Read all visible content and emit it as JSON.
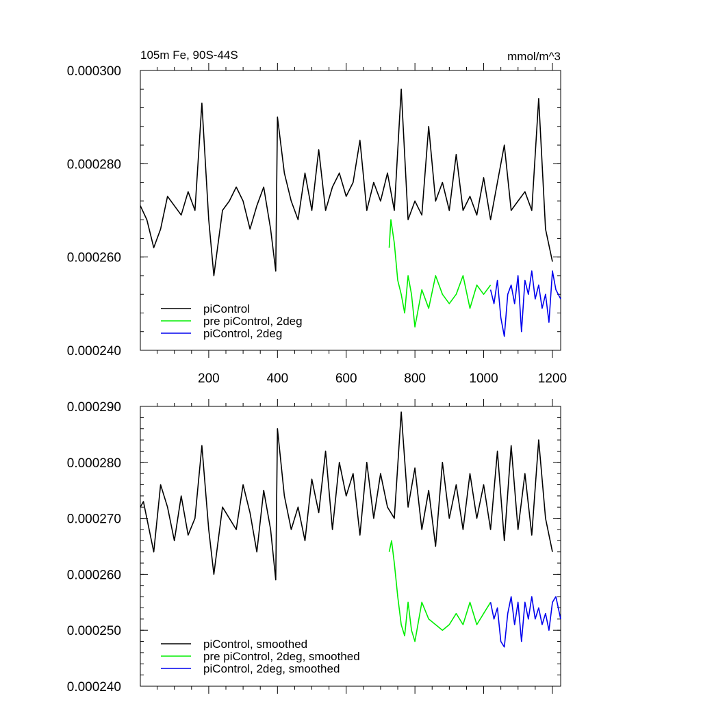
{
  "chart_data": [
    {
      "type": "line",
      "title": "105m Fe, 90S-44S",
      "units": "mmol/m^3",
      "xlabel": "",
      "ylabel": "",
      "xlim": [
        1,
        1224
      ],
      "ylim": [
        0.00024,
        0.0003
      ],
      "xticks": [
        200,
        400,
        600,
        800,
        1000,
        1200
      ],
      "xtick_labels": [
        "200",
        "400",
        "600",
        "800",
        "1000",
        "1200"
      ],
      "yticks": [
        0.00024,
        0.00026,
        0.00028,
        0.0003
      ],
      "ytick_labels": [
        "0.000240",
        "0.000260",
        "0.000280",
        "0.000300"
      ],
      "grid": false,
      "legend_position": "bottom-left",
      "series": [
        {
          "name": "piControl",
          "color": "#000000",
          "x": [
            1,
            20,
            40,
            60,
            80,
            100,
            120,
            140,
            160,
            180,
            200,
            215,
            240,
            260,
            280,
            300,
            320,
            340,
            360,
            380,
            395,
            400,
            420,
            440,
            460,
            480,
            500,
            520,
            540,
            560,
            580,
            600,
            620,
            640,
            660,
            680,
            700,
            720,
            740,
            760,
            780,
            800,
            820,
            840,
            860,
            880,
            900,
            920,
            940,
            960,
            980,
            1000,
            1020,
            1040,
            1060,
            1080,
            1100,
            1120,
            1140,
            1160,
            1180,
            1200
          ],
          "y": [
            0.000271,
            0.000268,
            0.000262,
            0.000266,
            0.000273,
            0.000271,
            0.000269,
            0.000274,
            0.00027,
            0.000293,
            0.000268,
            0.000256,
            0.00027,
            0.000272,
            0.000275,
            0.000272,
            0.000266,
            0.000271,
            0.000275,
            0.000266,
            0.000257,
            0.00029,
            0.000278,
            0.000272,
            0.000268,
            0.000278,
            0.00027,
            0.000283,
            0.00027,
            0.000275,
            0.000278,
            0.000273,
            0.000276,
            0.000285,
            0.00027,
            0.000276,
            0.000272,
            0.000278,
            0.00027,
            0.000296,
            0.000268,
            0.000272,
            0.000269,
            0.000288,
            0.000272,
            0.000276,
            0.00027,
            0.000282,
            0.00027,
            0.000273,
            0.000269,
            0.000277,
            0.000268,
            0.000276,
            0.000284,
            0.00027,
            0.000272,
            0.000274,
            0.00027,
            0.000294,
            0.000266,
            0.000259
          ]
        },
        {
          "name": "pre piControl, 2deg",
          "color": "#00ee00",
          "x": [
            725,
            730,
            740,
            750,
            760,
            770,
            780,
            790,
            800,
            820,
            840,
            860,
            880,
            900,
            920,
            940,
            960,
            980,
            1000,
            1020
          ],
          "y": [
            0.000262,
            0.000268,
            0.000263,
            0.000255,
            0.000252,
            0.000248,
            0.000256,
            0.000252,
            0.000245,
            0.000253,
            0.000249,
            0.000256,
            0.000252,
            0.00025,
            0.000252,
            0.000256,
            0.000249,
            0.000254,
            0.000252,
            0.000254
          ]
        },
        {
          "name": "piControl, 2deg",
          "color": "#0000ee",
          "x": [
            1020,
            1030,
            1040,
            1050,
            1060,
            1070,
            1080,
            1090,
            1100,
            1110,
            1120,
            1130,
            1140,
            1150,
            1160,
            1170,
            1180,
            1190,
            1200,
            1210,
            1224
          ],
          "y": [
            0.000253,
            0.00025,
            0.000255,
            0.000247,
            0.000243,
            0.000252,
            0.000254,
            0.00025,
            0.000256,
            0.000244,
            0.000255,
            0.000252,
            0.000257,
            0.000251,
            0.000254,
            0.000249,
            0.000252,
            0.000246,
            0.000257,
            0.000253,
            0.000251
          ]
        }
      ]
    },
    {
      "type": "line",
      "title": "",
      "xlabel": "",
      "ylabel": "",
      "xlim": [
        1,
        1224
      ],
      "ylim": [
        0.00024,
        0.00029
      ],
      "xticks": [
        200,
        400,
        600,
        800,
        1000,
        1200
      ],
      "yticks": [
        0.00024,
        0.00025,
        0.00026,
        0.00027,
        0.00028,
        0.00029
      ],
      "ytick_labels": [
        "0.000240",
        "0.000250",
        "0.000260",
        "0.000270",
        "0.000280",
        "0.000290"
      ],
      "grid": false,
      "legend_position": "bottom-left",
      "series": [
        {
          "name": "piControl, smoothed",
          "color": "#000000",
          "x": [
            1,
            10,
            20,
            40,
            60,
            80,
            100,
            120,
            140,
            160,
            180,
            200,
            215,
            240,
            260,
            280,
            300,
            320,
            340,
            360,
            380,
            395,
            400,
            420,
            440,
            460,
            480,
            500,
            520,
            540,
            560,
            580,
            600,
            620,
            640,
            660,
            680,
            700,
            720,
            740,
            760,
            780,
            800,
            820,
            840,
            860,
            880,
            900,
            920,
            940,
            960,
            980,
            1000,
            1020,
            1040,
            1060,
            1080,
            1100,
            1120,
            1140,
            1160,
            1180,
            1200
          ],
          "y": [
            0.000272,
            0.000273,
            0.00027,
            0.000264,
            0.000276,
            0.000272,
            0.000266,
            0.000274,
            0.000267,
            0.00027,
            0.000283,
            0.000268,
            0.00026,
            0.000272,
            0.00027,
            0.000268,
            0.000276,
            0.000271,
            0.000264,
            0.000275,
            0.000268,
            0.000259,
            0.000286,
            0.000274,
            0.000268,
            0.000272,
            0.000266,
            0.000277,
            0.000271,
            0.000282,
            0.000268,
            0.00028,
            0.000274,
            0.000278,
            0.000267,
            0.00028,
            0.00027,
            0.000278,
            0.000272,
            0.00027,
            0.000289,
            0.000272,
            0.000279,
            0.000268,
            0.000275,
            0.000265,
            0.00028,
            0.00027,
            0.000276,
            0.000268,
            0.000278,
            0.00027,
            0.000276,
            0.000268,
            0.000282,
            0.000266,
            0.000283,
            0.000268,
            0.000278,
            0.000267,
            0.000284,
            0.00027,
            0.000264
          ]
        },
        {
          "name": "pre piControl, 2deg, smoothed",
          "color": "#00ee00",
          "x": [
            725,
            732,
            740,
            750,
            760,
            770,
            780,
            790,
            800,
            820,
            840,
            860,
            880,
            900,
            920,
            940,
            960,
            980,
            1000,
            1020
          ],
          "y": [
            0.000264,
            0.000266,
            0.000262,
            0.000256,
            0.000251,
            0.000249,
            0.000255,
            0.00025,
            0.000248,
            0.000255,
            0.000252,
            0.000251,
            0.00025,
            0.000251,
            0.000253,
            0.000251,
            0.000255,
            0.000251,
            0.000253,
            0.000255
          ]
        },
        {
          "name": "piControl, 2deg, smoothed",
          "color": "#0000ee",
          "x": [
            1020,
            1030,
            1040,
            1050,
            1060,
            1070,
            1080,
            1090,
            1100,
            1110,
            1120,
            1130,
            1140,
            1150,
            1160,
            1170,
            1180,
            1190,
            1200,
            1210,
            1224
          ],
          "y": [
            0.000255,
            0.000252,
            0.000254,
            0.000248,
            0.000247,
            0.000253,
            0.000256,
            0.000251,
            0.000255,
            0.000248,
            0.000255,
            0.000252,
            0.000256,
            0.000252,
            0.000254,
            0.000251,
            0.000253,
            0.00025,
            0.000255,
            0.000256,
            0.000252
          ]
        }
      ]
    }
  ]
}
